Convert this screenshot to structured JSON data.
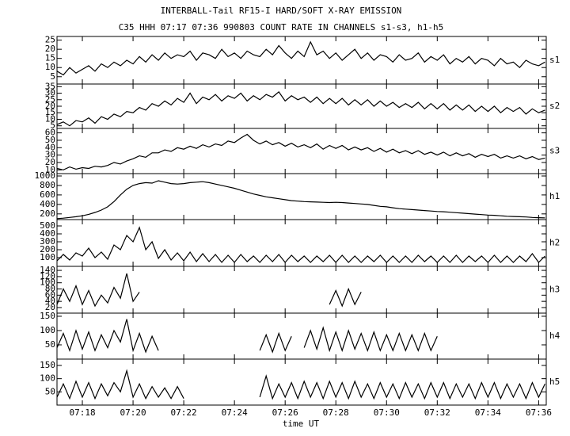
{
  "chart_data": {
    "type": "line",
    "title": "INTERBALL-Tail RF15-I HARD/SOFT X-RAY EMISSION",
    "subtitle": "C35 HHH 07:17 07:36 990803  COUNT RATE IN CHANNELS s1-s3, h1-h5",
    "x_label": "time UT",
    "x": [
      17,
      17.25,
      17.5,
      17.75,
      18,
      18.25,
      18.5,
      18.75,
      19,
      19.25,
      19.5,
      19.75,
      20,
      20.25,
      20.5,
      20.75,
      21,
      21.25,
      21.5,
      21.75,
      22,
      22.25,
      22.5,
      22.75,
      23,
      23.25,
      23.5,
      23.75,
      24,
      24.25,
      24.5,
      24.75,
      25,
      25.25,
      25.5,
      25.75,
      26,
      26.25,
      26.5,
      26.75,
      27,
      27.25,
      27.5,
      27.75,
      28,
      28.25,
      28.5,
      28.75,
      29,
      29.25,
      29.5,
      29.75,
      30,
      30.25,
      30.5,
      30.75,
      31,
      31.25,
      31.5,
      31.75,
      32,
      32.25,
      32.5,
      32.75,
      33,
      33.25,
      33.5,
      33.75,
      34,
      34.25,
      34.5,
      34.75,
      35,
      35.25,
      35.5,
      35.75,
      36,
      36.25
    ],
    "xlim": [
      17,
      36.3
    ],
    "xticks": [
      {
        "value": 18,
        "label": "07:18"
      },
      {
        "value": 20,
        "label": "07:20"
      },
      {
        "value": 22,
        "label": "07:22"
      },
      {
        "value": 24,
        "label": "07:24"
      },
      {
        "value": 26,
        "label": "07:26"
      },
      {
        "value": 28,
        "label": "07:28"
      },
      {
        "value": 30,
        "label": "07:30"
      },
      {
        "value": 32,
        "label": "07:32"
      },
      {
        "value": 34,
        "label": "07:34"
      },
      {
        "value": 36,
        "label": "07:36"
      }
    ],
    "series": [
      {
        "name": "s1",
        "color": "#000000",
        "ylim": [
          1,
          27
        ],
        "yticks": [
          5,
          10,
          15,
          20,
          25
        ],
        "values": [
          8,
          6,
          10,
          7,
          9,
          11,
          8,
          12,
          10,
          13,
          11,
          14,
          12,
          16,
          13,
          17,
          14,
          18,
          15,
          17,
          16,
          19,
          14,
          18,
          17,
          15,
          20,
          16,
          18,
          15,
          19,
          17,
          16,
          20,
          17,
          22,
          18,
          15,
          19,
          16,
          24,
          17,
          19,
          15,
          18,
          14,
          17,
          20,
          15,
          18,
          14,
          17,
          16,
          13,
          17,
          14,
          15,
          18,
          13,
          16,
          14,
          17,
          12,
          15,
          13,
          16,
          12,
          15,
          14,
          11,
          15,
          12,
          13,
          10,
          14,
          12,
          11,
          13
        ]
      },
      {
        "name": "s2",
        "color": "#000000",
        "ylim": [
          3,
          37
        ],
        "yticks": [
          5,
          10,
          15,
          20,
          25,
          30,
          35
        ],
        "values": [
          6,
          8,
          5,
          9,
          8,
          11,
          7,
          12,
          10,
          14,
          12,
          16,
          15,
          19,
          17,
          22,
          20,
          24,
          21,
          26,
          23,
          30,
          22,
          27,
          25,
          29,
          24,
          28,
          26,
          30,
          24,
          28,
          25,
          29,
          27,
          31,
          24,
          28,
          25,
          27,
          23,
          27,
          22,
          26,
          22,
          26,
          21,
          25,
          21,
          25,
          20,
          24,
          20,
          23,
          19,
          22,
          19,
          23,
          18,
          22,
          18,
          22,
          17,
          21,
          17,
          21,
          16,
          20,
          16,
          20,
          15,
          19,
          16,
          19,
          14,
          18,
          15,
          17
        ]
      },
      {
        "name": "s3",
        "color": "#000000",
        "ylim": [
          5,
          66
        ],
        "yticks": [
          10,
          20,
          30,
          40,
          50,
          60
        ],
        "values": [
          12,
          10,
          14,
          11,
          13,
          12,
          15,
          14,
          16,
          20,
          18,
          22,
          25,
          29,
          27,
          33,
          33,
          37,
          35,
          40,
          38,
          42,
          39,
          44,
          41,
          45,
          43,
          49,
          47,
          53,
          58,
          50,
          45,
          49,
          44,
          47,
          42,
          46,
          41,
          44,
          40,
          45,
          38,
          43,
          39,
          43,
          37,
          41,
          37,
          40,
          35,
          39,
          34,
          38,
          33,
          36,
          32,
          36,
          31,
          34,
          30,
          34,
          29,
          33,
          29,
          32,
          27,
          31,
          28,
          31,
          26,
          29,
          26,
          29,
          25,
          28,
          24,
          26
        ]
      },
      {
        "name": "h1",
        "color": "#000000",
        "ylim": [
          80,
          1050
        ],
        "yticks": [
          200,
          400,
          600,
          800,
          1000
        ],
        "values": [
          100,
          110,
          125,
          140,
          160,
          190,
          230,
          280,
          350,
          460,
          600,
          720,
          800,
          840,
          860,
          850,
          900,
          870,
          840,
          830,
          840,
          860,
          870,
          880,
          860,
          830,
          800,
          770,
          740,
          700,
          660,
          620,
          590,
          560,
          540,
          520,
          500,
          480,
          470,
          460,
          455,
          450,
          445,
          440,
          445,
          440,
          430,
          420,
          410,
          400,
          380,
          360,
          350,
          330,
          310,
          300,
          290,
          280,
          270,
          260,
          250,
          245,
          235,
          225,
          215,
          205,
          195,
          185,
          175,
          170,
          160,
          150,
          145,
          140,
          135,
          125,
          120,
          115
        ]
      },
      {
        "name": "h2",
        "color": "#000000",
        "ylim": [
          -10,
          580
        ],
        "yticks": [
          100,
          200,
          300,
          400,
          500
        ],
        "values": [
          60,
          140,
          70,
          160,
          120,
          220,
          100,
          170,
          80,
          260,
          200,
          380,
          300,
          480,
          200,
          300,
          90,
          200,
          70,
          160,
          60,
          170,
          50,
          150,
          50,
          140,
          40,
          130,
          40,
          140,
          50,
          120,
          40,
          130,
          50,
          140,
          40,
          130,
          50,
          120,
          40,
          120,
          50,
          130,
          40,
          130,
          40,
          120,
          40,
          120,
          50,
          130,
          40,
          120,
          40,
          120,
          40,
          130,
          50,
          120,
          40,
          120,
          40,
          130,
          40,
          120,
          50,
          120,
          40,
          130,
          40,
          120,
          40,
          120,
          50,
          150,
          40,
          120
        ]
      },
      {
        "name": "h3",
        "color": "#000000",
        "ylim": [
          2,
          153
        ],
        "yticks": [
          20,
          40,
          60,
          80,
          100,
          120,
          140
        ],
        "values": [
          30,
          80,
          40,
          90,
          30,
          75,
          25,
          60,
          35,
          85,
          50,
          130,
          40,
          70,
          null,
          null,
          null,
          null,
          null,
          null,
          null,
          null,
          null,
          null,
          null,
          null,
          null,
          null,
          null,
          null,
          null,
          null,
          null,
          null,
          null,
          null,
          null,
          null,
          null,
          null,
          null,
          null,
          null,
          30,
          75,
          25,
          80,
          30,
          70,
          null,
          null,
          null,
          null,
          null,
          null,
          null,
          null,
          null,
          null,
          null,
          null,
          null,
          null,
          null,
          null,
          null,
          null,
          null,
          null,
          null,
          null,
          null,
          null,
          null,
          null,
          null,
          null,
          null
        ]
      },
      {
        "name": "h4",
        "color": "#000000",
        "ylim": [
          0,
          161
        ],
        "yticks": [
          50,
          100,
          150
        ],
        "values": [
          40,
          90,
          30,
          100,
          35,
          95,
          30,
          85,
          40,
          100,
          60,
          140,
          30,
          90,
          25,
          80,
          30,
          null,
          null,
          null,
          null,
          null,
          null,
          null,
          null,
          null,
          null,
          null,
          null,
          null,
          null,
          null,
          30,
          85,
          25,
          90,
          30,
          80,
          null,
          40,
          100,
          35,
          110,
          30,
          95,
          30,
          100,
          35,
          90,
          30,
          95,
          30,
          85,
          30,
          90,
          30,
          85,
          30,
          90,
          30,
          80,
          null,
          null,
          null,
          null,
          null,
          null,
          null,
          null,
          null,
          null,
          null,
          null,
          null,
          null,
          null,
          null,
          null
        ]
      },
      {
        "name": "h5",
        "color": "#000000",
        "ylim": [
          0,
          174
        ],
        "yticks": [
          50,
          100,
          150
        ],
        "values": [
          30,
          80,
          25,
          90,
          30,
          85,
          25,
          80,
          35,
          85,
          50,
          130,
          30,
          80,
          25,
          70,
          30,
          65,
          25,
          70,
          25,
          null,
          null,
          null,
          null,
          null,
          null,
          null,
          null,
          null,
          null,
          null,
          30,
          110,
          25,
          80,
          30,
          85,
          25,
          90,
          30,
          85,
          25,
          90,
          30,
          85,
          25,
          90,
          30,
          80,
          25,
          85,
          30,
          80,
          25,
          85,
          30,
          80,
          25,
          85,
          30,
          85,
          25,
          80,
          30,
          80,
          25,
          85,
          30,
          85,
          25,
          80,
          30,
          80,
          25,
          85,
          30,
          80
        ]
      }
    ]
  }
}
